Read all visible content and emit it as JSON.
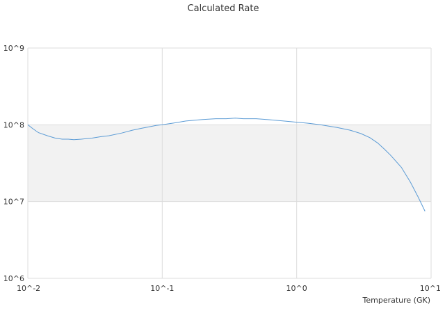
{
  "chart_data": {
    "type": "line",
    "title": "Calculated Rate",
    "xlabel": "Temperature (GK)",
    "ylabel": "",
    "x_scale": "log",
    "y_scale": "log",
    "xlim": [
      0.01,
      10
    ],
    "ylim": [
      1000000,
      1000000000
    ],
    "x_ticks": [
      "10^-2",
      "10^-1",
      "10^0",
      "10^1"
    ],
    "y_ticks": [
      "10^6",
      "10^7",
      "10^8",
      "10^9"
    ],
    "grid": true,
    "legend": "none",
    "band": {
      "y_from": 10000000,
      "y_to": 100000000,
      "color": "#f2f2f2"
    },
    "series": [
      {
        "color": "#5b9bd5",
        "x": [
          0.01,
          0.011,
          0.012,
          0.014,
          0.016,
          0.018,
          0.02,
          0.022,
          0.025,
          0.03,
          0.035,
          0.04,
          0.05,
          0.06,
          0.07,
          0.08,
          0.09,
          0.1,
          0.12,
          0.15,
          0.2,
          0.25,
          0.3,
          0.35,
          0.4,
          0.5,
          0.6,
          0.8,
          1.0,
          1.2,
          1.5,
          2.0,
          2.5,
          3.0,
          3.5,
          4.0,
          4.5,
          5.0,
          6.0,
          7.0,
          8.0,
          9.0
        ],
        "y": [
          100000000,
          88000000,
          79000000,
          72000000,
          67000000,
          65000000,
          65000000,
          64000000,
          65000000,
          67000000,
          70000000,
          72000000,
          78000000,
          85000000,
          90000000,
          94000000,
          98000000,
          100000000,
          105000000,
          112000000,
          117000000,
          120000000,
          120000000,
          122000000,
          120000000,
          120000000,
          117000000,
          112000000,
          108000000,
          105000000,
          100000000,
          92000000,
          85000000,
          77000000,
          68000000,
          58000000,
          48000000,
          40000000,
          28000000,
          18000000,
          11500000,
          7500000
        ]
      }
    ]
  }
}
